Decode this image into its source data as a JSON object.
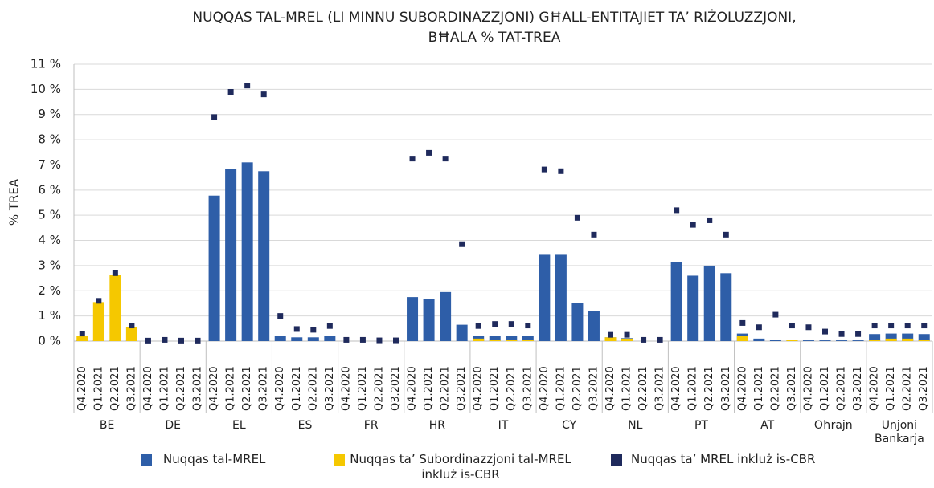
{
  "chart_data": {
    "type": "bar",
    "title": [
      "NUQQAS TAL-MREL (LI MINNU SUBORDINAZZJONI) GĦALL-ENTITAJIET TA’ RIŻOLUZZJONI,",
      "BĦALA % TAT-TREA"
    ],
    "y_label": "% TREA",
    "groups": [
      "BE",
      "DE",
      "EL",
      "ES",
      "FR",
      "HR",
      "IT",
      "CY",
      "NL",
      "PT",
      "AT",
      "Oħrajn",
      "Unjoni Bankarja"
    ],
    "categories": [
      "Q4.2020",
      "Q1.2021",
      "Q2.2021",
      "Q3.2021",
      "Q4.2020",
      "Q1.2021",
      "Q2.2021",
      "Q3.2021",
      "Q4.2020",
      "Q1.2021",
      "Q2.2021",
      "Q3.2021",
      "Q4.2020",
      "Q1.2021",
      "Q2.2021",
      "Q3.2021",
      "Q4.2020",
      "Q1.2021",
      "Q2.2021",
      "Q3.2021",
      "Q4.2020",
      "Q1.2021",
      "Q2.2021",
      "Q3.2021",
      "Q4.2020",
      "Q1.2021",
      "Q2.2021",
      "Q3.2021",
      "Q4.2020",
      "Q1.2021",
      "Q2.2021",
      "Q3.2021",
      "Q4.2020",
      "Q1.2021",
      "Q2.2021",
      "Q3.2021",
      "Q4.2020",
      "Q1.2021",
      "Q2.2021",
      "Q3.2021",
      "Q4.2020",
      "Q1.2021",
      "Q2.2021",
      "Q3.2021",
      "Q4.2020",
      "Q1.2021",
      "Q2.2021",
      "Q3.2021",
      "Q4.2020",
      "Q1.2021",
      "Q2.2021",
      "Q3.2021"
    ],
    "series": [
      {
        "name": "Nuqqas tal-MREL",
        "color": "#2e5ea8",
        "type": "bar",
        "values": [
          0.05,
          0.05,
          0.05,
          0.05,
          0,
          0,
          0,
          0,
          5.78,
          6.85,
          7.1,
          6.75,
          0.2,
          0.15,
          0.15,
          0.22,
          0,
          0,
          0,
          0,
          1.75,
          1.67,
          1.95,
          0.65,
          0.2,
          0.22,
          0.22,
          0.2,
          3.43,
          3.43,
          1.5,
          1.18,
          0.15,
          0.12,
          0,
          0,
          3.15,
          2.6,
          3.0,
          2.7,
          0.3,
          0.1,
          0.05,
          0.05,
          0.03,
          0.03,
          0.03,
          0.03,
          0.28,
          0.3,
          0.3,
          0.28
        ]
      },
      {
        "name": "Nuqqas ta’ Subordinazzjoni tal-MREL inkluż is-CBR",
        "color": "#f5c800",
        "type": "bar",
        "values": [
          0.2,
          1.55,
          2.62,
          0.55,
          0,
          0,
          0,
          0,
          0,
          0,
          0,
          0,
          0,
          0,
          0,
          0,
          0,
          0,
          0,
          0,
          0,
          0,
          0,
          0,
          0.1,
          0.05,
          0.05,
          0.05,
          0,
          0,
          0,
          0,
          0.15,
          0.1,
          0,
          0,
          0,
          0,
          0,
          0,
          0.2,
          0,
          0,
          0.05,
          0,
          0,
          0,
          0,
          0.05,
          0.1,
          0.1,
          0.05
        ]
      },
      {
        "name": "Nuqqas ta’ MREL inkluż is-CBR",
        "color": "#1f2a5c",
        "type": "marker",
        "values": [
          0.3,
          1.6,
          2.7,
          0.62,
          0.02,
          0.05,
          0.02,
          0.02,
          8.9,
          9.9,
          10.15,
          9.8,
          1.0,
          0.48,
          0.45,
          0.6,
          0.05,
          0.05,
          0.03,
          0.03,
          7.25,
          7.48,
          7.25,
          3.85,
          0.6,
          0.68,
          0.68,
          0.62,
          6.82,
          6.75,
          4.9,
          4.23,
          0.25,
          0.25,
          0.05,
          0.05,
          5.2,
          4.62,
          4.8,
          4.23,
          0.72,
          0.55,
          1.05,
          0.62,
          0.55,
          0.38,
          0.28,
          0.28,
          0.62,
          0.62,
          0.62,
          0.62
        ]
      }
    ],
    "ylim": [
      0,
      11
    ],
    "yticks": [
      {
        "value": 0,
        "label": "0 %"
      },
      {
        "value": 1,
        "label": "1 %"
      },
      {
        "value": 2,
        "label": "2 %"
      },
      {
        "value": 3,
        "label": "3 %"
      },
      {
        "value": 4,
        "label": "4 %"
      },
      {
        "value": 5,
        "label": "5 %"
      },
      {
        "value": 6,
        "label": "6 %"
      },
      {
        "value": 7,
        "label": "7 %"
      },
      {
        "value": 8,
        "label": "8 %"
      },
      {
        "value": 9,
        "label": "9 %"
      },
      {
        "value": 10,
        "label": "10 %"
      },
      {
        "value": 11,
        "label": "11 %"
      }
    ],
    "grid": true
  }
}
